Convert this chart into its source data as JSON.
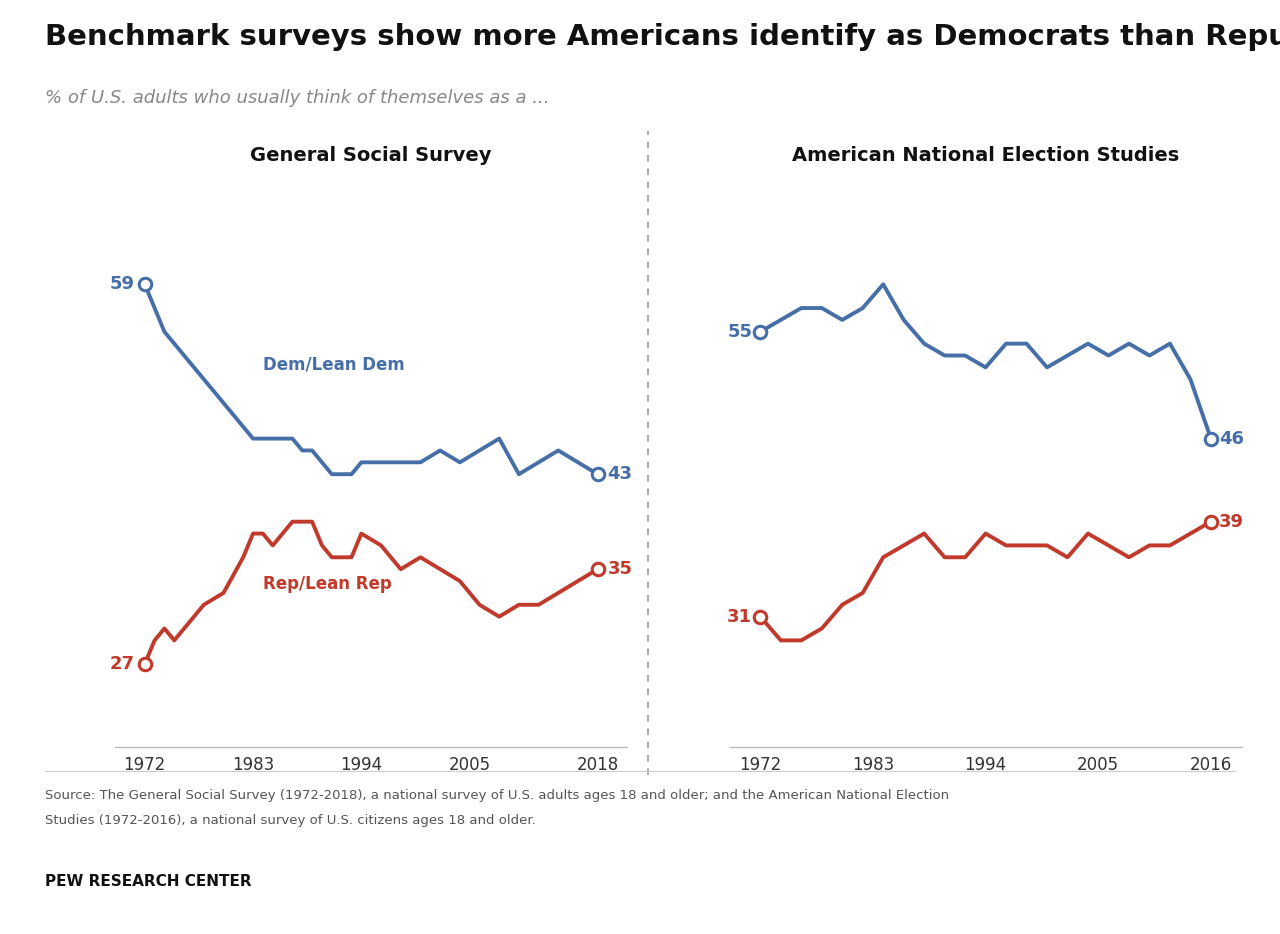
{
  "title": "Benchmark surveys show more Americans identify as Democrats than Republicans",
  "subtitle": "% of U.S. adults who usually think of themselves as a ...",
  "left_title": "General Social Survey",
  "right_title": "American National Election Studies",
  "source": "Source: The General Social Survey (1972-2018), a national survey of U.S. adults ages 18 and older; and the American National Election\nStudies (1972-2016), a national survey of U.S. citizens ages 18 and older.",
  "credit": "PEW RESEARCH CENTER",
  "dem_color": "#466fa8",
  "rep_color": "#c0392b",
  "bg_color": "#ffffff",
  "gss_dem_x": [
    1972,
    1973,
    1974,
    1975,
    1976,
    1977,
    1978,
    1980,
    1982,
    1983,
    1984,
    1985,
    1986,
    1987,
    1988,
    1989,
    1990,
    1991,
    1993,
    1994,
    1996,
    1998,
    2000,
    2002,
    2004,
    2006,
    2008,
    2010,
    2012,
    2014,
    2016,
    2018
  ],
  "gss_dem_y": [
    59,
    57,
    55,
    54,
    53,
    52,
    51,
    49,
    47,
    46,
    46,
    46,
    46,
    46,
    45,
    45,
    44,
    43,
    43,
    44,
    44,
    44,
    44,
    45,
    44,
    45,
    46,
    43,
    44,
    45,
    44,
    43
  ],
  "gss_rep_x": [
    1972,
    1973,
    1974,
    1975,
    1976,
    1977,
    1978,
    1980,
    1982,
    1983,
    1984,
    1985,
    1986,
    1987,
    1988,
    1989,
    1990,
    1991,
    1993,
    1994,
    1996,
    1998,
    2000,
    2002,
    2004,
    2006,
    2008,
    2010,
    2012,
    2014,
    2016,
    2018
  ],
  "gss_rep_y": [
    27,
    29,
    30,
    29,
    30,
    31,
    32,
    33,
    36,
    38,
    38,
    37,
    38,
    39,
    39,
    39,
    37,
    36,
    36,
    38,
    37,
    35,
    36,
    35,
    34,
    32,
    31,
    32,
    32,
    33,
    34,
    35
  ],
  "anes_dem_x": [
    1972,
    1974,
    1976,
    1978,
    1980,
    1982,
    1984,
    1986,
    1988,
    1990,
    1992,
    1994,
    1996,
    1998,
    2000,
    2002,
    2004,
    2006,
    2008,
    2010,
    2012,
    2014,
    2016
  ],
  "anes_dem_y": [
    55,
    56,
    57,
    57,
    56,
    57,
    59,
    56,
    54,
    53,
    53,
    52,
    54,
    54,
    52,
    53,
    54,
    53,
    54,
    53,
    54,
    51,
    46
  ],
  "anes_rep_x": [
    1972,
    1974,
    1976,
    1978,
    1980,
    1982,
    1984,
    1986,
    1988,
    1990,
    1992,
    1994,
    1996,
    1998,
    2000,
    2002,
    2004,
    2006,
    2008,
    2010,
    2012,
    2014,
    2016
  ],
  "anes_rep_y": [
    31,
    29,
    29,
    30,
    32,
    33,
    36,
    37,
    38,
    36,
    36,
    38,
    37,
    37,
    37,
    36,
    38,
    37,
    36,
    37,
    37,
    38,
    39
  ],
  "gss_xticks": [
    1972,
    1983,
    1994,
    2005,
    2018
  ],
  "anes_xticks": [
    1972,
    1983,
    1994,
    2005,
    2016
  ],
  "ylim": [
    20,
    68
  ],
  "gss_xlim": [
    1969,
    2021
  ],
  "anes_xlim": [
    1969,
    2019
  ]
}
